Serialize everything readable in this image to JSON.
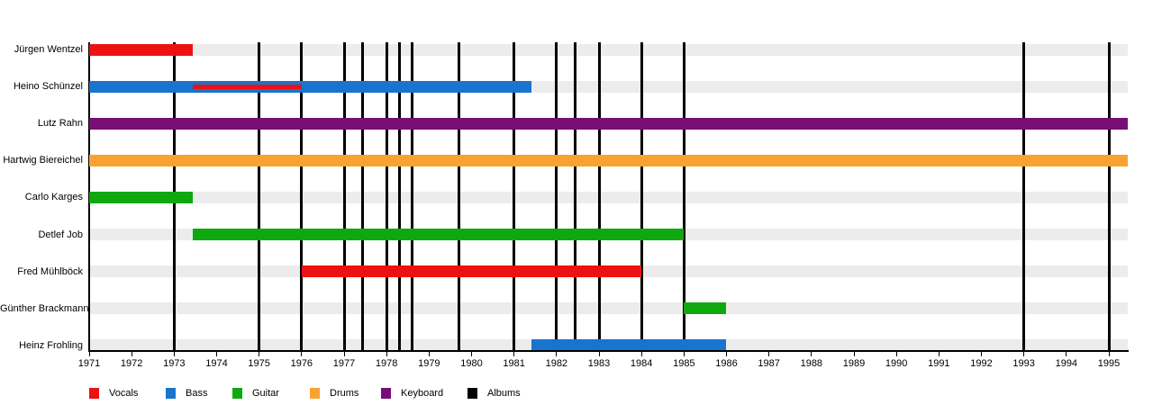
{
  "chart_data": {
    "type": "timeline",
    "x_axis": {
      "min": 1971,
      "max": 1995.45,
      "tick_labels": [
        "1971",
        "1972",
        "1973",
        "1974",
        "1975",
        "1976",
        "1977",
        "1978",
        "1979",
        "1980",
        "1981",
        "1982",
        "1983",
        "1984",
        "1985",
        "1986",
        "1987",
        "1988",
        "1989",
        "1990",
        "1991",
        "1992",
        "1993",
        "1994",
        "1995"
      ]
    },
    "legend": [
      {
        "label": "Vocals",
        "color": "#ee1111"
      },
      {
        "label": "Bass",
        "color": "#1874cd"
      },
      {
        "label": "Guitar",
        "color": "#0fa80f"
      },
      {
        "label": "Drums",
        "color": "#f9a232"
      },
      {
        "label": "Keyboard",
        "color": "#770e77"
      },
      {
        "label": "Albums",
        "color": "#000000"
      }
    ],
    "members": [
      {
        "name": "Jürgen Wentzel",
        "bars": [
          {
            "role": "Vocals",
            "start": 1971,
            "end": 1973.43
          }
        ]
      },
      {
        "name": "Heino Schünzel",
        "bars": [
          {
            "role": "Bass",
            "start": 1971,
            "end": 1981.41
          },
          {
            "role": "Vocals",
            "start": 1973.43,
            "end": 1976,
            "thin": true
          }
        ]
      },
      {
        "name": "Lutz Rahn",
        "bars": [
          {
            "role": "Keyboard",
            "start": 1971,
            "end": 1995.45
          }
        ]
      },
      {
        "name": "Hartwig Biereichel",
        "bars": [
          {
            "role": "Drums",
            "start": 1971,
            "end": 1995.45
          }
        ]
      },
      {
        "name": "Carlo Karges",
        "bars": [
          {
            "role": "Guitar",
            "start": 1971,
            "end": 1973.43
          }
        ]
      },
      {
        "name": "Detlef Job",
        "bars": [
          {
            "role": "Guitar",
            "start": 1973.43,
            "end": 1985
          }
        ]
      },
      {
        "name": "Fred Mühlböck",
        "bars": [
          {
            "role": "Vocals",
            "start": 1976,
            "end": 1984
          }
        ]
      },
      {
        "name": "Günther Brackmann",
        "bars": [
          {
            "role": "Guitar",
            "start": 1985,
            "end": 1986
          }
        ]
      },
      {
        "name": "Heinz Frohling",
        "bars": [
          {
            "role": "Bass",
            "start": 1981.41,
            "end": 1986
          }
        ]
      }
    ],
    "album_release_lines_years": [
      1973,
      1975,
      1976,
      1977,
      1977.44,
      1978,
      1978.3,
      1978.6,
      1979.7,
      1981,
      1982,
      1982.43,
      1983,
      1984,
      1985,
      1993,
      1995
    ]
  },
  "colors": {
    "background": "#ffffff",
    "row_band": "#ececec",
    "axis": "#000000",
    "text": "#000000"
  }
}
